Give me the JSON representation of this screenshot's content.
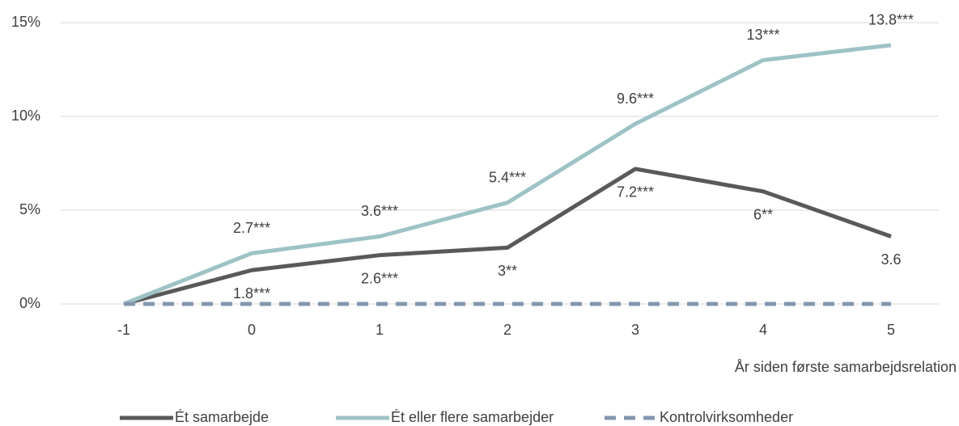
{
  "chart_data": {
    "type": "line",
    "x_label": "År siden første samarbejdsrelation",
    "categories": [
      "-1",
      "0",
      "1",
      "2",
      "3",
      "4",
      "5"
    ],
    "series": [
      {
        "name": "Ét samarbejde",
        "color": "#595959",
        "values": [
          0,
          1.8,
          2.6,
          3,
          7.2,
          6,
          3.6
        ],
        "value_labels": [
          null,
          "1.8***",
          "2.6***",
          "3**",
          "7.2***",
          "6**",
          "3.6"
        ]
      },
      {
        "name": "Ét eller flere samarbejder",
        "color": "#9dc3c6",
        "values": [
          0,
          2.7,
          3.6,
          5.4,
          9.6,
          13,
          13.8
        ],
        "value_labels": [
          null,
          "2.7***",
          "3.6***",
          "5.4***",
          "9.6***",
          "13***",
          "13.8***"
        ]
      },
      {
        "name": "Kontrolvirksomheder",
        "color": "#8497b0",
        "dashed": true,
        "values": [
          0,
          0,
          0,
          0,
          0,
          0,
          0
        ]
      }
    ],
    "ylim": [
      0,
      15
    ],
    "yticks": [
      {
        "value": 0,
        "label": "0%"
      },
      {
        "value": 5,
        "label": "5%"
      },
      {
        "value": 10,
        "label": "10%"
      },
      {
        "value": 15,
        "label": "15%"
      }
    ],
    "grid": true
  }
}
